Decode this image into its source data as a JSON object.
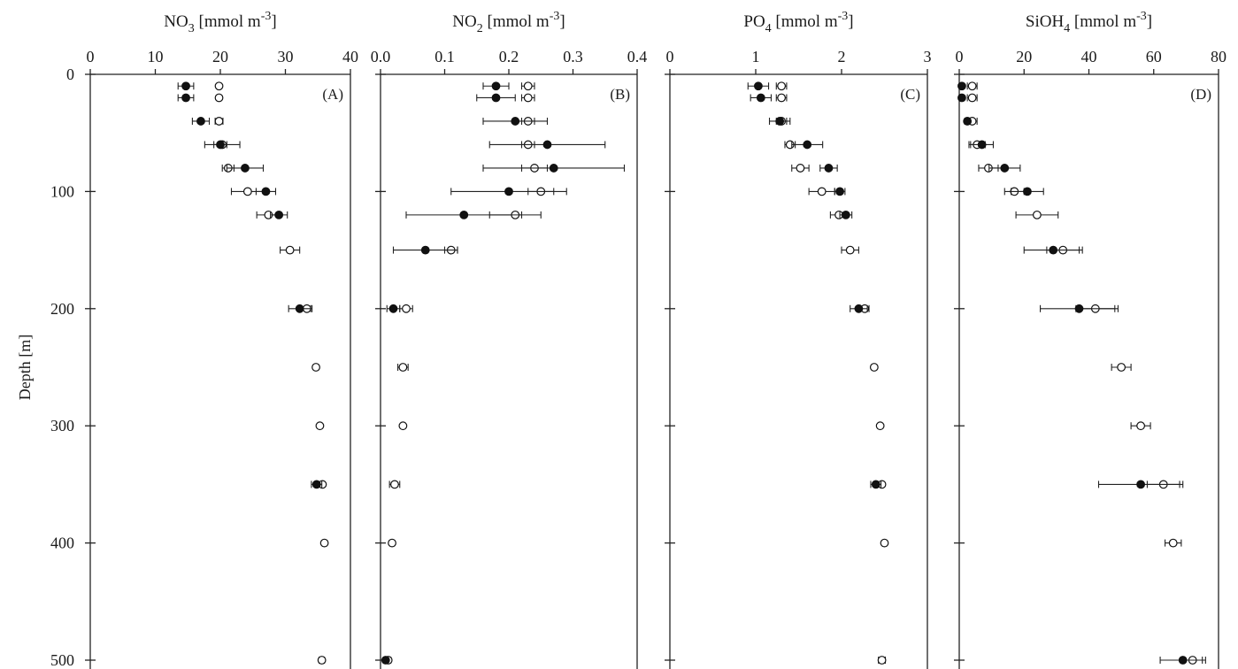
{
  "figure": {
    "y_axis": {
      "label": "Depth [m]",
      "ticks": [
        0,
        100,
        200,
        300,
        400,
        500
      ],
      "ylim": [
        0,
        500
      ],
      "inverted": true
    }
  },
  "chart_data": [
    {
      "type": "scatter",
      "panel_label": "(A)",
      "title_main": "NO",
      "title_sub": "3",
      "title_unit": " [mmol m",
      "title_sup": "-3",
      "title_close": "]",
      "xlim": [
        0,
        40
      ],
      "xticks": [
        0,
        10,
        20,
        30,
        40
      ],
      "series": [
        {
          "marker": "filled",
          "points": [
            {
              "y": 10,
              "x": 14.7,
              "err": 1.2
            },
            {
              "y": 20,
              "x": 14.7,
              "err": 1.2
            },
            {
              "y": 40,
              "x": 17.0,
              "err": 1.3
            },
            {
              "y": 60,
              "x": 20.0,
              "err": 1.0
            },
            {
              "y": 80,
              "x": 23.8,
              "err": 2.8
            },
            {
              "y": 100,
              "x": 27.0,
              "err": 1.5
            },
            {
              "y": 120,
              "x": 29.0,
              "err": 1.3
            },
            {
              "y": 200,
              "x": 32.2,
              "err": 1.7
            },
            {
              "y": 350,
              "x": 34.8,
              "err": 0.8
            }
          ]
        },
        {
          "marker": "open",
          "points": [
            {
              "y": 10,
              "x": 19.8,
              "err": 0
            },
            {
              "y": 20,
              "x": 19.8,
              "err": 0
            },
            {
              "y": 40,
              "x": 19.8,
              "err": 0.6
            },
            {
              "y": 60,
              "x": 20.3,
              "err": 2.7
            },
            {
              "y": 80,
              "x": 21.2,
              "err": 0.9
            },
            {
              "y": 100,
              "x": 24.2,
              "err": 2.5
            },
            {
              "y": 120,
              "x": 27.4,
              "err": 1.8
            },
            {
              "y": 150,
              "x": 30.7,
              "err": 1.5
            },
            {
              "y": 200,
              "x": 33.3,
              "err": 0.8
            },
            {
              "y": 250,
              "x": 34.7,
              "err": 0
            },
            {
              "y": 300,
              "x": 35.3,
              "err": 0
            },
            {
              "y": 350,
              "x": 35.7,
              "err": 0
            },
            {
              "y": 400,
              "x": 36.0,
              "err": 0
            },
            {
              "y": 500,
              "x": 35.6,
              "err": 0.4
            }
          ]
        }
      ]
    },
    {
      "type": "scatter",
      "panel_label": "(B)",
      "title_main": "NO",
      "title_sub": "2",
      "title_unit": " [mmol m",
      "title_sup": "-3",
      "title_close": "]",
      "xlim": [
        0,
        0.4
      ],
      "xticks": [
        "0.0",
        "0.1",
        "0.2",
        "0.3",
        "0.4"
      ],
      "series": [
        {
          "marker": "filled",
          "points": [
            {
              "y": 10,
              "x": 0.18,
              "err": 0.02
            },
            {
              "y": 20,
              "x": 0.18,
              "err": 0.03
            },
            {
              "y": 40,
              "x": 0.21,
              "err": 0.05
            },
            {
              "y": 60,
              "x": 0.26,
              "err": 0.09
            },
            {
              "y": 80,
              "x": 0.27,
              "err": 0.11
            },
            {
              "y": 100,
              "x": 0.2,
              "err": 0.09
            },
            {
              "y": 120,
              "x": 0.13,
              "err": 0.09
            },
            {
              "y": 150,
              "x": 0.07,
              "err": 0.05
            },
            {
              "y": 200,
              "x": 0.02,
              "err": 0.01
            },
            {
              "y": 500,
              "x": 0.008,
              "err": 0.003
            }
          ]
        },
        {
          "marker": "open",
          "points": [
            {
              "y": 10,
              "x": 0.23,
              "err": 0.01
            },
            {
              "y": 20,
              "x": 0.23,
              "err": 0.01
            },
            {
              "y": 40,
              "x": 0.23,
              "err": 0.01
            },
            {
              "y": 60,
              "x": 0.23,
              "err": 0.01
            },
            {
              "y": 80,
              "x": 0.24,
              "err": 0.02
            },
            {
              "y": 100,
              "x": 0.25,
              "err": 0.02
            },
            {
              "y": 120,
              "x": 0.21,
              "err": 0.04
            },
            {
              "y": 150,
              "x": 0.11,
              "err": 0.01
            },
            {
              "y": 200,
              "x": 0.04,
              "err": 0.01
            },
            {
              "y": 250,
              "x": 0.035,
              "err": 0.008
            },
            {
              "y": 300,
              "x": 0.035,
              "err": 0
            },
            {
              "y": 350,
              "x": 0.022,
              "err": 0.008
            },
            {
              "y": 400,
              "x": 0.018,
              "err": 0
            },
            {
              "y": 500,
              "x": 0.012,
              "err": 0.004
            }
          ]
        }
      ]
    },
    {
      "type": "scatter",
      "panel_label": "(C)",
      "title_main": "PO",
      "title_sub": "4",
      "title_unit": "  [mmol m",
      "title_sup": "-3",
      "title_close": "]",
      "xlim": [
        0,
        3
      ],
      "xticks": [
        0,
        1,
        2,
        3
      ],
      "series": [
        {
          "marker": "filled",
          "points": [
            {
              "y": 10,
              "x": 1.03,
              "err": 0.12
            },
            {
              "y": 20,
              "x": 1.06,
              "err": 0.12
            },
            {
              "y": 40,
              "x": 1.28,
              "err": 0.12
            },
            {
              "y": 60,
              "x": 1.6,
              "err": 0.18
            },
            {
              "y": 80,
              "x": 1.85,
              "err": 0.1
            },
            {
              "y": 100,
              "x": 1.98,
              "err": 0.06
            },
            {
              "y": 120,
              "x": 2.05,
              "err": 0.07
            },
            {
              "y": 200,
              "x": 2.2,
              "err": 0.1
            },
            {
              "y": 350,
              "x": 2.4,
              "err": 0.06
            }
          ]
        },
        {
          "marker": "open",
          "points": [
            {
              "y": 10,
              "x": 1.3,
              "err": 0.06
            },
            {
              "y": 20,
              "x": 1.3,
              "err": 0.06
            },
            {
              "y": 40,
              "x": 1.3,
              "err": 0.06
            },
            {
              "y": 60,
              "x": 1.4,
              "err": 0.06
            },
            {
              "y": 80,
              "x": 1.52,
              "err": 0.1
            },
            {
              "y": 100,
              "x": 1.77,
              "err": 0.15
            },
            {
              "y": 120,
              "x": 1.97,
              "err": 0.1
            },
            {
              "y": 150,
              "x": 2.1,
              "err": 0.1
            },
            {
              "y": 200,
              "x": 2.27,
              "err": 0.05
            },
            {
              "y": 250,
              "x": 2.38,
              "err": 0
            },
            {
              "y": 300,
              "x": 2.45,
              "err": 0
            },
            {
              "y": 350,
              "x": 2.47,
              "err": 0
            },
            {
              "y": 400,
              "x": 2.5,
              "err": 0
            },
            {
              "y": 500,
              "x": 2.47,
              "err": 0.04
            }
          ]
        }
      ]
    },
    {
      "type": "scatter",
      "panel_label": "(D)",
      "title_main": "SiOH",
      "title_sub": "4",
      "title_unit": " [mmol m",
      "title_sup": "-3",
      "title_close": "]",
      "xlim": [
        0,
        80
      ],
      "xticks": [
        0,
        20,
        40,
        60,
        80
      ],
      "series": [
        {
          "marker": "filled",
          "points": [
            {
              "y": 10,
              "x": 0.8,
              "err": 0.5
            },
            {
              "y": 20,
              "x": 0.8,
              "err": 0.5
            },
            {
              "y": 40,
              "x": 2.5,
              "err": 0.8
            },
            {
              "y": 60,
              "x": 7.0,
              "err": 3.5
            },
            {
              "y": 80,
              "x": 14.0,
              "err": 4.8
            },
            {
              "y": 100,
              "x": 21.0,
              "err": 5.0
            },
            {
              "y": 150,
              "x": 29.0,
              "err": 9.0
            },
            {
              "y": 200,
              "x": 37.0,
              "err": 12.0
            },
            {
              "y": 350,
              "x": 56.0,
              "err": 13.0
            },
            {
              "y": 500,
              "x": 69.0,
              "err": 7.0
            }
          ]
        },
        {
          "marker": "open",
          "points": [
            {
              "y": 10,
              "x": 4.0,
              "err": 1.5
            },
            {
              "y": 20,
              "x": 4.0,
              "err": 1.5
            },
            {
              "y": 40,
              "x": 4.0,
              "err": 1.5
            },
            {
              "y": 60,
              "x": 5.5,
              "err": 2.5
            },
            {
              "y": 80,
              "x": 9.0,
              "err": 3.0
            },
            {
              "y": 100,
              "x": 17.0,
              "err": 3.0
            },
            {
              "y": 120,
              "x": 24.0,
              "err": 6.5
            },
            {
              "y": 150,
              "x": 32.0,
              "err": 5.0
            },
            {
              "y": 200,
              "x": 42.0,
              "err": 6.0
            },
            {
              "y": 250,
              "x": 50.0,
              "err": 3.0
            },
            {
              "y": 300,
              "x": 56.0,
              "err": 3.0
            },
            {
              "y": 350,
              "x": 63.0,
              "err": 5.0
            },
            {
              "y": 400,
              "x": 66.0,
              "err": 2.5
            },
            {
              "y": 500,
              "x": 72.0,
              "err": 3.0
            }
          ]
        }
      ]
    }
  ]
}
